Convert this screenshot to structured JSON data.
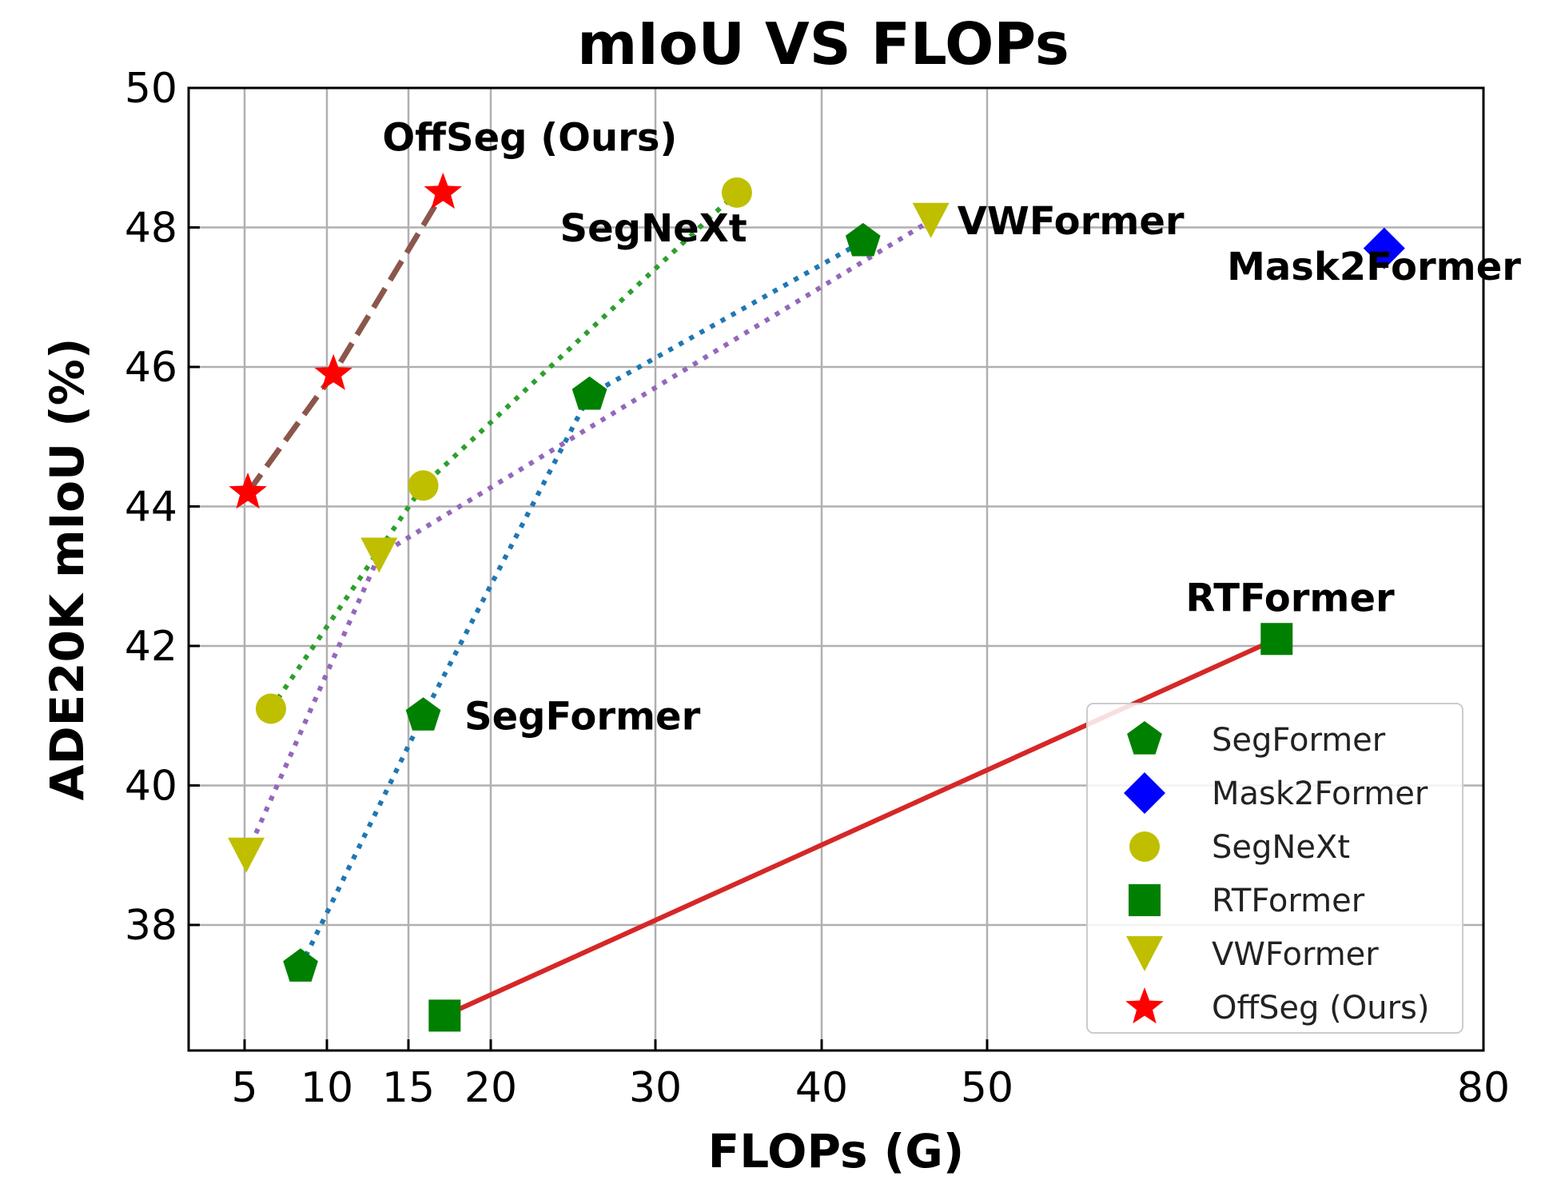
{
  "chart_data": {
    "type": "scatter",
    "title": "mIoU VS FLOPs",
    "xlabel": "FLOPs (G)",
    "ylabel": "ADE20K mIoU (%)",
    "xlim": [
      1.6,
      80
    ],
    "ylim": [
      36.2,
      50
    ],
    "x_scale": "piecewise",
    "x_ticks": [
      5,
      10,
      15,
      20,
      30,
      40,
      50,
      80
    ],
    "y_ticks": [
      38,
      40,
      42,
      44,
      46,
      48,
      50
    ],
    "grid": true,
    "legend_position": "lower right",
    "series": [
      {
        "name": "SegFormer",
        "marker": "pentagon",
        "color": "#008000",
        "line_color": "#1f77b4",
        "line_style": "dotted",
        "x": [
          8.4,
          15.9,
          26.0,
          42.5
        ],
        "y": [
          37.4,
          41.0,
          45.6,
          47.8
        ]
      },
      {
        "name": "Mask2Former",
        "marker": "diamond",
        "color": "#0000ff",
        "line_color": "",
        "line_style": "none",
        "x": [
          74.0
        ],
        "y": [
          47.7
        ]
      },
      {
        "name": "SegNeXt",
        "marker": "circle",
        "color": "#bfbf00",
        "line_color": "#2ca02c",
        "line_style": "dotted",
        "x": [
          6.6,
          15.9,
          34.9
        ],
        "y": [
          41.1,
          44.3,
          48.5
        ]
      },
      {
        "name": "RTFormer",
        "marker": "square",
        "color": "#008000",
        "line_color": "#d62728",
        "line_style": "solid",
        "x": [
          17.2,
          67.5
        ],
        "y": [
          36.7,
          42.1
        ]
      },
      {
        "name": "VWFormer",
        "marker": "triangle_down",
        "color": "#bfbf00",
        "line_color": "#9467bd",
        "line_style": "dotted",
        "x": [
          5.1,
          13.2,
          46.6
        ],
        "y": [
          39.0,
          43.3,
          48.1
        ]
      },
      {
        "name": "OffSeg (Ours)",
        "marker": "star",
        "color": "#ff0000",
        "line_color": "#8c564b",
        "line_style": "dashed",
        "x": [
          5.2,
          10.4,
          17.1
        ],
        "y": [
          44.2,
          45.9,
          48.5
        ]
      }
    ],
    "annotations": [
      {
        "text": "OffSeg (Ours)",
        "x": 13.4,
        "y": 49.1
      },
      {
        "text": "SegNeXt",
        "x": 24.2,
        "y": 47.8
      },
      {
        "text": "VWFormer",
        "x": 48.2,
        "y": 47.9
      },
      {
        "text": "Mask2Former",
        "x": 64.5,
        "y": 47.25
      },
      {
        "text": "SegFormer",
        "x": 18.4,
        "y": 40.8
      },
      {
        "text": "RTFormer",
        "x": 62.0,
        "y": 42.5
      }
    ]
  }
}
